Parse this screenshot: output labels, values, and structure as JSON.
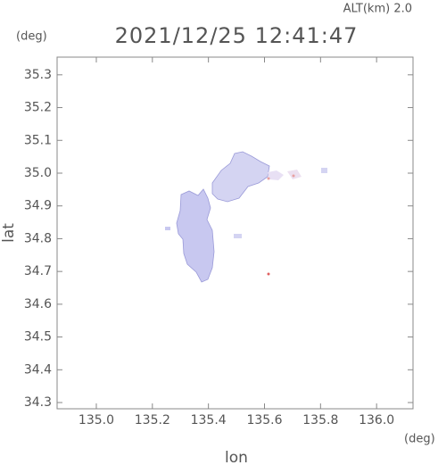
{
  "chart_data": {
    "type": "map",
    "title": "2021/12/25 12:41:47",
    "annotation": "ALT(km) 2.0",
    "x_label": "lon",
    "y_label": "lat",
    "x_unit": "(deg)",
    "y_unit": "(deg)",
    "xlim": [
      134.86,
      136.13
    ],
    "ylim": [
      34.281,
      35.354
    ],
    "xticks": [
      {
        "value": 135,
        "label": "135.0"
      },
      135.2,
      135.4,
      135.6,
      135.8,
      {
        "value": 136,
        "label": "136.0"
      }
    ],
    "yticks": [
      34.3,
      34.4,
      34.5,
      34.6,
      34.7,
      34.8,
      34.9,
      {
        "value": 35,
        "label": "35.0"
      },
      35.1,
      35.2,
      35.3
    ]
  }
}
